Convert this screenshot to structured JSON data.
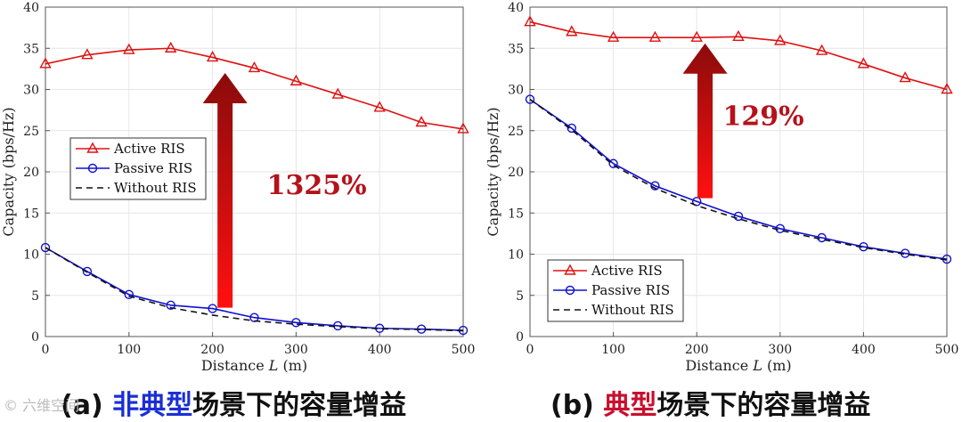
{
  "chart_data": [
    {
      "type": "line",
      "title": "",
      "xlabel_prefix": "Distance ",
      "xlabel_var": "L",
      "xlabel_suffix": " (m)",
      "ylabel": "Capacity (bps/Hz)",
      "xlim": [
        0,
        500
      ],
      "ylim": [
        0,
        40
      ],
      "x_ticks": [
        0,
        100,
        200,
        300,
        400,
        500
      ],
      "y_ticks": [
        0,
        5,
        10,
        15,
        20,
        25,
        30,
        35,
        40
      ],
      "grid": true,
      "legend_position": "center-left",
      "x": [
        0,
        50,
        100,
        150,
        200,
        250,
        300,
        350,
        400,
        450,
        500
      ],
      "series": [
        {
          "name": "Active RIS",
          "color": "#e01010",
          "marker": "triangle",
          "dash": "solid",
          "values": [
            33.1,
            34.2,
            34.8,
            35.0,
            33.9,
            32.6,
            31.0,
            29.4,
            27.8,
            26.0,
            25.2
          ]
        },
        {
          "name": "Passive RIS",
          "color": "#1010d0",
          "marker": "circle",
          "dash": "solid",
          "values": [
            10.8,
            7.9,
            5.1,
            3.8,
            3.4,
            2.3,
            1.7,
            1.3,
            1.0,
            0.9,
            0.75
          ]
        },
        {
          "name": "Without RIS",
          "color": "#111111",
          "marker": "none",
          "dash": "dashed",
          "values": [
            10.8,
            7.8,
            4.9,
            3.5,
            2.6,
            1.9,
            1.5,
            1.2,
            0.95,
            0.85,
            0.7
          ]
        }
      ],
      "annotation": {
        "text": "1325%",
        "arrow_x": 215,
        "arrow_from": 3.5,
        "arrow_to": 32.0
      }
    },
    {
      "type": "line",
      "title": "",
      "xlabel_prefix": "Distance ",
      "xlabel_var": "L",
      "xlabel_suffix": " (m)",
      "ylabel": "Capacity (bps/Hz)",
      "xlim": [
        0,
        500
      ],
      "ylim": [
        0,
        40
      ],
      "x_ticks": [
        0,
        100,
        200,
        300,
        400,
        500
      ],
      "y_ticks": [
        0,
        5,
        10,
        15,
        20,
        25,
        30,
        35,
        40
      ],
      "grid": true,
      "legend_position": "bottom-left",
      "x": [
        0,
        50,
        100,
        150,
        200,
        250,
        300,
        350,
        400,
        450,
        500
      ],
      "series": [
        {
          "name": "Active RIS",
          "color": "#e01010",
          "marker": "triangle",
          "dash": "solid",
          "values": [
            38.2,
            37.0,
            36.3,
            36.3,
            36.3,
            36.4,
            35.9,
            34.7,
            33.1,
            31.4,
            30.0
          ]
        },
        {
          "name": "Passive RIS",
          "color": "#1010d0",
          "marker": "circle",
          "dash": "solid",
          "values": [
            28.8,
            25.3,
            21.0,
            18.3,
            16.4,
            14.6,
            13.1,
            12.0,
            10.9,
            10.1,
            9.4
          ]
        },
        {
          "name": "Without RIS",
          "color": "#111111",
          "marker": "none",
          "dash": "dashed",
          "values": [
            28.8,
            25.1,
            20.8,
            18.0,
            15.9,
            14.3,
            12.9,
            11.8,
            10.8,
            10.0,
            9.3
          ]
        }
      ],
      "annotation": {
        "text": "129%",
        "arrow_x": 210,
        "arrow_from": 16.8,
        "arrow_to": 35.6
      }
    }
  ],
  "captions": [
    {
      "prefix": "(a) ",
      "highlight": "非典型",
      "rest": "场景下的容量增益"
    },
    {
      "prefix": "(b) ",
      "highlight": "典型",
      "rest": "场景下的容量增益"
    }
  ],
  "watermark": "© 六维空间"
}
